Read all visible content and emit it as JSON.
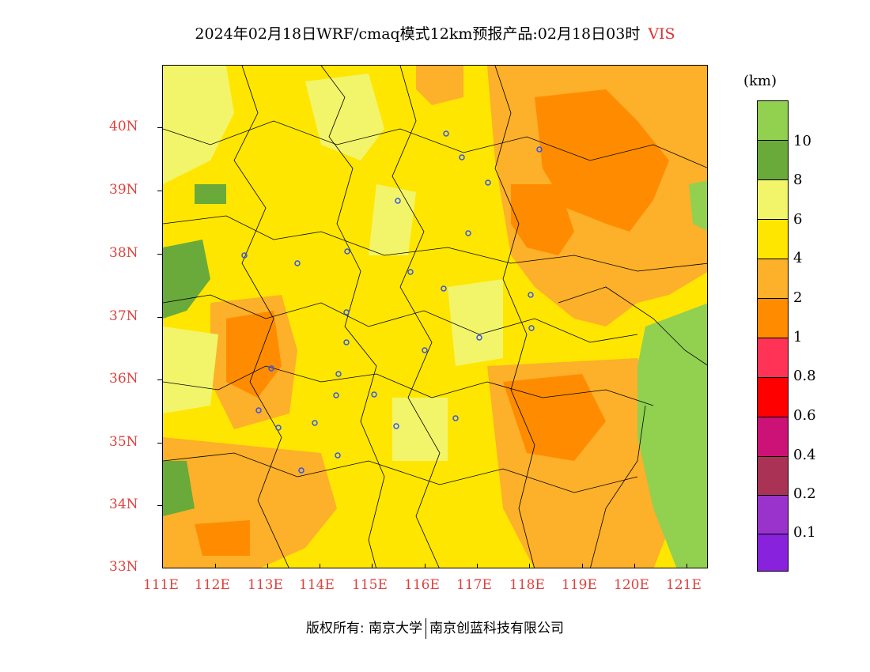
{
  "title": {
    "text": "2024年02月18日WRF/cmaq模式12km预报产品:02月18日03时",
    "variable": "VIS"
  },
  "axes": {
    "y_ticks": [
      "40N",
      "39N",
      "38N",
      "37N",
      "36N",
      "35N",
      "34N",
      "33N"
    ],
    "x_ticks": [
      "111E",
      "112E",
      "113E",
      "114E",
      "115E",
      "116E",
      "117E",
      "118E",
      "119E",
      "120E",
      "121E"
    ]
  },
  "colorbar": {
    "unit": "(km)",
    "labels": [
      "10",
      "8",
      "6",
      "4",
      "2",
      "1",
      "0.8",
      "0.6",
      "0.4",
      "0.2",
      "0.1"
    ],
    "colors": [
      "#92d050",
      "#6aaa3a",
      "#f2f56a",
      "#ffe600",
      "#fdb02a",
      "#ff8c00",
      "#ff3355",
      "#ff0000",
      "#cc1177",
      "#aa3355",
      "#9933cc",
      "#8822dd"
    ]
  },
  "map_colors": {
    "light_yellow": "#f2f56a",
    "yellow": "#ffe600",
    "orange_light": "#fdb02a",
    "orange": "#ff8c00",
    "green_light": "#92d050",
    "green_dark": "#6aaa3a",
    "city_marker": "#3355ee"
  },
  "footer": {
    "left": "版权所有: 南京大学",
    "right": "南京创蓝科技有限公司"
  }
}
